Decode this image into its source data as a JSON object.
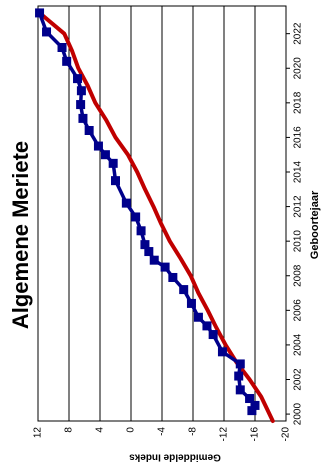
{
  "chart_data": {
    "type": "line",
    "title": "Algemene Meriete",
    "xlabel": "Geboortejaar",
    "ylabel": "Gemiddelde Indeks",
    "xlim": [
      1999.6,
      2023.6
    ],
    "ylim": [
      -20,
      12
    ],
    "x_ticks": [
      2000,
      2002,
      2004,
      2006,
      2008,
      2010,
      2012,
      2014,
      2016,
      2018,
      2020,
      2022
    ],
    "y_ticks": [
      12,
      8,
      4,
      0,
      -4,
      -8,
      -12,
      -16,
      -20
    ],
    "grid": "horizontal",
    "colors": {
      "observed": "#00008b",
      "trend": "#c00000",
      "grid": "#000000"
    },
    "series": [
      {
        "style": "line-square-markers",
        "x": [
          2000.2,
          2000.5,
          2000.9,
          2001.4,
          2002.2,
          2002.9,
          2003.6,
          2004.6,
          2005.1,
          2005.6,
          2006.4,
          2007.2,
          2007.9,
          2008.5,
          2008.9,
          2009.4,
          2009.8,
          2010.6,
          2011.4,
          2012.2,
          2013.5,
          2014.5,
          2015.0,
          2015.5,
          2016.4,
          2017.1,
          2017.9,
          2018.7,
          2019.4,
          2020.4,
          2021.2,
          2022.1,
          2023.2
        ],
        "y": [
          -15.6,
          -16.0,
          -15.3,
          -14.1,
          -13.9,
          -14.1,
          -11.8,
          -10.6,
          -9.8,
          -8.7,
          -7.8,
          -6.8,
          -5.4,
          -4.4,
          -3.0,
          -2.3,
          -1.8,
          -1.3,
          -0.6,
          0.6,
          2.0,
          2.3,
          3.3,
          4.2,
          5.4,
          6.2,
          6.5,
          6.4,
          6.9,
          8.3,
          8.9,
          10.9,
          11.8
        ]
      },
      {
        "style": "trend-line",
        "x": [
          1999.6,
          2001,
          2002,
          2003,
          2004,
          2005,
          2006,
          2007,
          2008,
          2009,
          2010,
          2011,
          2012,
          2013,
          2014,
          2015,
          2016,
          2017,
          2018,
          2019,
          2020,
          2021,
          2022,
          2023.2
        ],
        "y": [
          -18.3,
          -16.8,
          -15.3,
          -13.6,
          -12.2,
          -11.0,
          -9.9,
          -8.7,
          -7.7,
          -6.4,
          -5.0,
          -3.9,
          -2.9,
          -1.8,
          -0.8,
          0.4,
          2.0,
          3.2,
          4.6,
          5.6,
          6.8,
          7.6,
          8.6,
          11.8
        ]
      }
    ]
  }
}
